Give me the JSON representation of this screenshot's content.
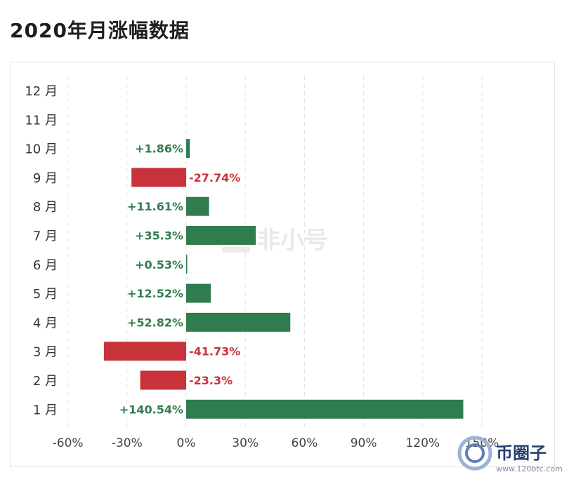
{
  "page": {
    "title": "2020年月涨幅数据"
  },
  "watermark": {
    "center_text": "非小号",
    "logo_text": "币圈子",
    "logo_url": "www.120btc.com"
  },
  "colors": {
    "positive": "#2f7d4e",
    "negative": "#c8323a",
    "grid": "#e2e2e2"
  },
  "chart_data": {
    "type": "bar",
    "orientation": "horizontal",
    "title": "2020年月涨幅数据",
    "xlabel": "",
    "ylabel": "",
    "xlim": [
      -60,
      150
    ],
    "x_ticks": [
      "-60%",
      "-30%",
      "0%",
      "30%",
      "60%",
      "90%",
      "120%",
      "150%"
    ],
    "x_tick_values": [
      -60,
      -30,
      0,
      30,
      60,
      90,
      120,
      150
    ],
    "grid": true,
    "categories": [
      "12 月",
      "11 月",
      "10 月",
      "9 月",
      "8 月",
      "7 月",
      "6 月",
      "5 月",
      "4 月",
      "3 月",
      "2 月",
      "1 月"
    ],
    "values": [
      null,
      null,
      1.86,
      -27.74,
      11.61,
      35.3,
      0.53,
      12.52,
      52.82,
      -41.73,
      -23.3,
      140.54
    ],
    "value_labels": [
      "",
      "",
      "+1.86%",
      "-27.74%",
      "+11.61%",
      "+35.3%",
      "+0.53%",
      "+12.52%",
      "+52.82%",
      "-41.73%",
      "-23.3%",
      "+140.54%"
    ]
  }
}
